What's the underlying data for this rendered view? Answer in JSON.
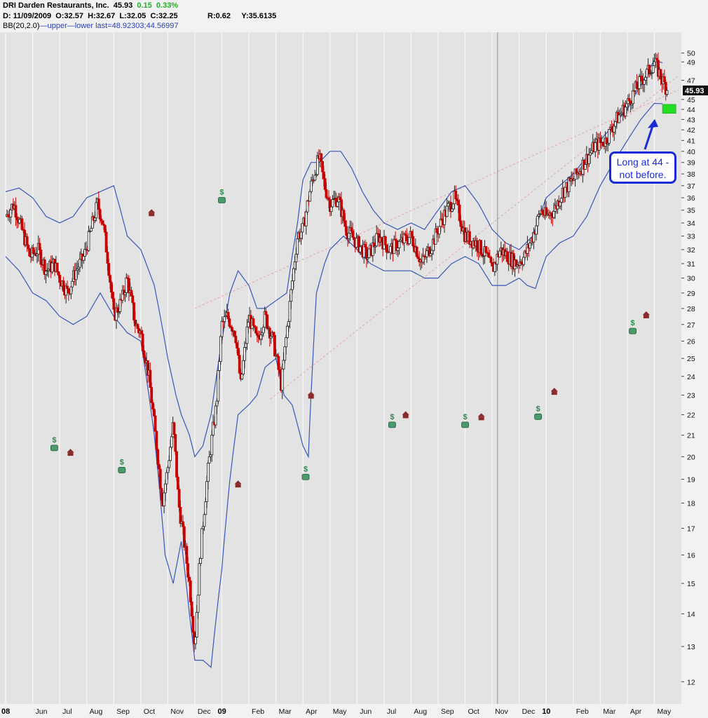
{
  "header": {
    "symbol_line": "DRI Darden Restaurants, Inc.",
    "last": "45.93",
    "change": "0.15",
    "change_pct": "0.33%",
    "ohlc_date": "D: 11/09/2009",
    "open": "O:32.57",
    "high": "H:32.67",
    "low": "L:32.05",
    "close": "C:32.25",
    "r_value": "R:0.62",
    "y_value": "Y:35.6135",
    "bb_label": "BB(20,2.0)",
    "bb_upper": "upper",
    "bb_lower": "lower",
    "bb_last": "last=48.92303;44.56997"
  },
  "price_tag": "45.93",
  "annotation": {
    "text_line1": "Long at 44 -",
    "text_line2": "not before."
  },
  "chart_data": {
    "type": "candlestick",
    "scale": "log",
    "ylim": [
      11.5,
      52
    ],
    "yticks": [
      12,
      13,
      14,
      15,
      16,
      17,
      18,
      19,
      20,
      21,
      22,
      23,
      24,
      25,
      26,
      27,
      28,
      29,
      30,
      31,
      32,
      33,
      34,
      35,
      36,
      37,
      38,
      39,
      40,
      41,
      42,
      43,
      44,
      45,
      47,
      49,
      50
    ],
    "xtick_labels": [
      {
        "label": "08",
        "t": 0.0,
        "year": true
      },
      {
        "label": "Jun",
        "t": 1.0
      },
      {
        "label": "Jul",
        "t": 2.0
      },
      {
        "label": "Aug",
        "t": 3.0
      },
      {
        "label": "Sep",
        "t": 4.0
      },
      {
        "label": "Oct",
        "t": 5.0
      },
      {
        "label": "Nov",
        "t": 6.0
      },
      {
        "label": "Dec",
        "t": 7.0
      },
      {
        "label": "09",
        "t": 8.0,
        "year": true
      },
      {
        "label": "Feb",
        "t": 9.0
      },
      {
        "label": "Mar",
        "t": 10.0
      },
      {
        "label": "Apr",
        "t": 11.0
      },
      {
        "label": "May",
        "t": 12.0
      },
      {
        "label": "Jun",
        "t": 13.0
      },
      {
        "label": "Jul",
        "t": 14.0
      },
      {
        "label": "Aug",
        "t": 15.0
      },
      {
        "label": "Sep",
        "t": 16.0
      },
      {
        "label": "Oct",
        "t": 17.0
      },
      {
        "label": "Nov",
        "t": 18.0
      },
      {
        "label": "Dec",
        "t": 19.0
      },
      {
        "label": "10",
        "t": 20.0,
        "year": true
      },
      {
        "label": "Feb",
        "t": 21.0
      },
      {
        "label": "Mar",
        "t": 22.0
      },
      {
        "label": "Apr",
        "t": 23.0
      },
      {
        "label": "May",
        "t": 24.0
      }
    ],
    "price_path": [
      [
        0.0,
        34.5
      ],
      [
        0.3,
        35.5
      ],
      [
        0.6,
        33.5
      ],
      [
        0.9,
        31.5
      ],
      [
        1.2,
        32.0
      ],
      [
        1.5,
        30.5
      ],
      [
        1.8,
        31.0
      ],
      [
        2.0,
        30.0
      ],
      [
        2.3,
        29.0
      ],
      [
        2.6,
        30.5
      ],
      [
        2.9,
        31.5
      ],
      [
        3.1,
        33.0
      ],
      [
        3.4,
        35.5
      ],
      [
        3.6,
        34.0
      ],
      [
        3.8,
        31.0
      ],
      [
        4.0,
        27.5
      ],
      [
        4.3,
        28.5
      ],
      [
        4.5,
        30.0
      ],
      [
        4.8,
        27.0
      ],
      [
        5.0,
        26.5
      ],
      [
        5.3,
        24.0
      ],
      [
        5.5,
        21.5
      ],
      [
        5.8,
        18.0
      ],
      [
        6.0,
        19.5
      ],
      [
        6.2,
        21.5
      ],
      [
        6.4,
        18.0
      ],
      [
        6.6,
        16.5
      ],
      [
        6.8,
        15.0
      ],
      [
        7.0,
        13.0
      ],
      [
        7.2,
        16.0
      ],
      [
        7.5,
        19.5
      ],
      [
        7.8,
        22.5
      ],
      [
        8.0,
        27.0
      ],
      [
        8.2,
        27.5
      ],
      [
        8.5,
        26.5
      ],
      [
        8.7,
        23.5
      ],
      [
        9.0,
        27.5
      ],
      [
        9.3,
        26.0
      ],
      [
        9.6,
        27.5
      ],
      [
        9.9,
        26.0
      ],
      [
        10.2,
        23.5
      ],
      [
        10.5,
        28.0
      ],
      [
        10.8,
        33.0
      ],
      [
        11.0,
        33.5
      ],
      [
        11.3,
        37.0
      ],
      [
        11.6,
        39.5
      ],
      [
        11.8,
        37.0
      ],
      [
        12.0,
        35.5
      ],
      [
        12.3,
        36.0
      ],
      [
        12.6,
        33.5
      ],
      [
        13.0,
        32.5
      ],
      [
        13.4,
        31.5
      ],
      [
        13.8,
        33.0
      ],
      [
        14.2,
        32.0
      ],
      [
        14.6,
        32.5
      ],
      [
        15.0,
        33.0
      ],
      [
        15.4,
        31.0
      ],
      [
        15.8,
        32.5
      ],
      [
        16.2,
        34.5
      ],
      [
        16.6,
        36.0
      ],
      [
        17.0,
        33.0
      ],
      [
        17.4,
        32.5
      ],
      [
        17.8,
        31.5
      ],
      [
        18.0,
        30.5
      ],
      [
        18.3,
        32.0
      ],
      [
        18.6,
        31.5
      ],
      [
        18.9,
        31.0
      ],
      [
        19.2,
        31.5
      ],
      [
        19.5,
        33.0
      ],
      [
        19.8,
        35.0
      ],
      [
        20.0,
        34.5
      ],
      [
        20.3,
        35.0
      ],
      [
        20.6,
        36.5
      ],
      [
        21.0,
        37.5
      ],
      [
        21.4,
        39.0
      ],
      [
        21.8,
        40.5
      ],
      [
        22.2,
        41.0
      ],
      [
        22.6,
        43.0
      ],
      [
        23.0,
        44.5
      ],
      [
        23.4,
        46.5
      ],
      [
        23.8,
        48.0
      ],
      [
        24.0,
        49.0
      ],
      [
        24.3,
        47.0
      ],
      [
        24.5,
        45.93
      ]
    ],
    "bb_upper_path": [
      [
        0.0,
        36.5
      ],
      [
        0.5,
        36.8
      ],
      [
        1.0,
        36.0
      ],
      [
        1.5,
        34.5
      ],
      [
        2.0,
        34.0
      ],
      [
        2.5,
        34.5
      ],
      [
        3.0,
        36.0
      ],
      [
        3.5,
        36.5
      ],
      [
        4.0,
        37.0
      ],
      [
        4.5,
        33.0
      ],
      [
        5.0,
        32.0
      ],
      [
        5.5,
        29.5
      ],
      [
        6.0,
        25.0
      ],
      [
        6.3,
        23.0
      ],
      [
        6.5,
        22.0
      ],
      [
        6.8,
        21.0
      ],
      [
        7.0,
        20.0
      ],
      [
        7.3,
        20.5
      ],
      [
        7.6,
        22.0
      ],
      [
        8.0,
        26.0
      ],
      [
        8.3,
        29.0
      ],
      [
        8.6,
        30.5
      ],
      [
        9.0,
        29.5
      ],
      [
        9.3,
        28.0
      ],
      [
        9.6,
        28.0
      ],
      [
        10.0,
        28.5
      ],
      [
        10.4,
        29.0
      ],
      [
        10.8,
        34.0
      ],
      [
        11.0,
        37.5
      ],
      [
        11.3,
        39.0
      ],
      [
        11.6,
        39.0
      ],
      [
        12.0,
        40.0
      ],
      [
        12.4,
        40.0
      ],
      [
        12.8,
        38.5
      ],
      [
        13.2,
        36.5
      ],
      [
        13.6,
        35.0
      ],
      [
        14.0,
        34.0
      ],
      [
        14.5,
        33.5
      ],
      [
        15.0,
        34.0
      ],
      [
        15.5,
        33.5
      ],
      [
        16.0,
        35.0
      ],
      [
        16.5,
        36.5
      ],
      [
        17.0,
        37.0
      ],
      [
        17.5,
        35.5
      ],
      [
        18.0,
        33.5
      ],
      [
        18.5,
        32.5
      ],
      [
        19.0,
        32.0
      ],
      [
        19.5,
        33.0
      ],
      [
        20.0,
        36.0
      ],
      [
        20.5,
        37.0
      ],
      [
        21.0,
        38.0
      ],
      [
        21.5,
        39.5
      ],
      [
        22.0,
        41.0
      ],
      [
        22.5,
        42.5
      ],
      [
        23.0,
        44.0
      ],
      [
        23.5,
        46.5
      ],
      [
        24.0,
        49.2
      ],
      [
        24.3,
        48.9
      ]
    ],
    "bb_lower_path": [
      [
        0.0,
        31.5
      ],
      [
        0.5,
        30.5
      ],
      [
        1.0,
        29.0
      ],
      [
        1.5,
        28.5
      ],
      [
        2.0,
        27.5
      ],
      [
        2.5,
        27.0
      ],
      [
        3.0,
        27.5
      ],
      [
        3.5,
        29.0
      ],
      [
        4.0,
        27.5
      ],
      [
        4.5,
        26.5
      ],
      [
        5.0,
        26.0
      ],
      [
        5.5,
        21.0
      ],
      [
        5.9,
        16.0
      ],
      [
        6.2,
        15.0
      ],
      [
        6.5,
        16.5
      ],
      [
        6.8,
        14.0
      ],
      [
        7.0,
        12.6
      ],
      [
        7.3,
        12.6
      ],
      [
        7.6,
        12.4
      ],
      [
        8.0,
        15.5
      ],
      [
        8.3,
        19.0
      ],
      [
        8.6,
        22.0
      ],
      [
        9.0,
        22.5
      ],
      [
        9.3,
        23.0
      ],
      [
        9.6,
        24.5
      ],
      [
        10.0,
        25.0
      ],
      [
        10.3,
        23.0
      ],
      [
        10.6,
        22.5
      ],
      [
        11.0,
        20.5
      ],
      [
        11.2,
        20.0
      ],
      [
        11.5,
        29.0
      ],
      [
        11.8,
        31.0
      ],
      [
        12.0,
        32.0
      ],
      [
        12.5,
        33.0
      ],
      [
        13.0,
        32.0
      ],
      [
        13.5,
        31.0
      ],
      [
        14.0,
        30.5
      ],
      [
        14.5,
        30.5
      ],
      [
        15.0,
        30.5
      ],
      [
        15.5,
        30.0
      ],
      [
        16.0,
        30.0
      ],
      [
        16.5,
        31.0
      ],
      [
        17.0,
        31.5
      ],
      [
        17.5,
        31.0
      ],
      [
        18.0,
        29.5
      ],
      [
        18.5,
        29.5
      ],
      [
        19.0,
        30.0
      ],
      [
        19.3,
        29.5
      ],
      [
        19.6,
        29.3
      ],
      [
        20.0,
        31.5
      ],
      [
        20.5,
        32.5
      ],
      [
        21.0,
        33.0
      ],
      [
        21.5,
        34.5
      ],
      [
        22.0,
        37.0
      ],
      [
        22.5,
        39.0
      ],
      [
        23.0,
        41.0
      ],
      [
        23.5,
        43.0
      ],
      [
        24.0,
        44.6
      ],
      [
        24.3,
        44.57
      ]
    ],
    "trendlines": [
      {
        "from": [
          7.0,
          28.0
        ],
        "to": [
          24.9,
          46.0
        ]
      },
      {
        "from": [
          9.8,
          22.8
        ],
        "to": [
          24.9,
          47.5
        ]
      }
    ],
    "vertical_marker_t": 18.2,
    "target_zone": {
      "t0": 24.3,
      "t1": 24.8,
      "low": 43.6,
      "high": 44.5
    },
    "dividend_markers": [
      {
        "t": 1.8,
        "value": 20.4
      },
      {
        "t": 4.3,
        "value": 19.4
      },
      {
        "t": 8.0,
        "value": 35.8
      },
      {
        "t": 11.1,
        "value": 19.1
      },
      {
        "t": 14.3,
        "value": 21.5
      },
      {
        "t": 17.0,
        "value": 21.5
      },
      {
        "t": 19.7,
        "value": 21.9
      },
      {
        "t": 23.2,
        "value": 26.6
      }
    ],
    "earnings_markers": [
      {
        "t": 2.4,
        "value": 20.2
      },
      {
        "t": 5.4,
        "value": 34.8
      },
      {
        "t": 8.6,
        "value": 18.8
      },
      {
        "t": 11.3,
        "value": 23.0
      },
      {
        "t": 14.8,
        "value": 22.0
      },
      {
        "t": 17.6,
        "value": 21.9
      },
      {
        "t": 20.3,
        "value": 23.2
      },
      {
        "t": 23.7,
        "value": 27.6
      }
    ]
  }
}
